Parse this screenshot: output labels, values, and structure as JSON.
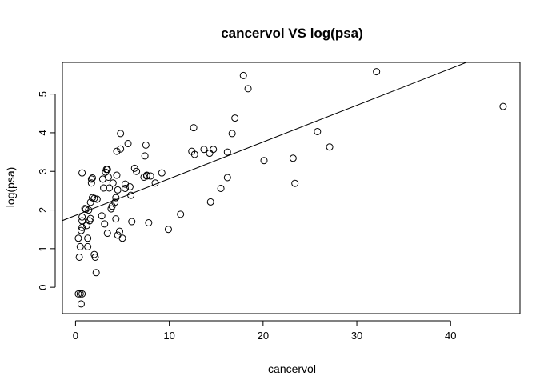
{
  "chart_data": {
    "type": "scatter",
    "title": "cancervol VS log(psa)",
    "xlabel": "cancervol",
    "ylabel": "log(psa)",
    "xlim": [
      -1.4,
      47.4
    ],
    "ylim": [
      -0.68,
      5.82
    ],
    "xticks": [
      0,
      10,
      20,
      30,
      40
    ],
    "yticks": [
      0,
      1,
      2,
      3,
      4,
      5
    ],
    "grid": false,
    "legend": "none",
    "point_color": "#000000",
    "regression_line": {
      "intercept": 1.86,
      "slope": 0.095
    },
    "points": [
      [
        0.3,
        -0.17
      ],
      [
        0.5,
        -0.17
      ],
      [
        0.7,
        -0.17
      ],
      [
        0.6,
        -0.43
      ],
      [
        0.3,
        1.27
      ],
      [
        0.4,
        0.78
      ],
      [
        0.5,
        1.05
      ],
      [
        0.6,
        1.47
      ],
      [
        0.7,
        1.55
      ],
      [
        0.7,
        1.72
      ],
      [
        0.7,
        1.82
      ],
      [
        0.7,
        2.96
      ],
      [
        1.0,
        2.04
      ],
      [
        1.1,
        2.02
      ],
      [
        1.2,
        1.6
      ],
      [
        1.3,
        1.27
      ],
      [
        1.3,
        1.05
      ],
      [
        1.4,
        2.0
      ],
      [
        1.5,
        1.72
      ],
      [
        1.6,
        1.78
      ],
      [
        1.6,
        2.2
      ],
      [
        1.7,
        2.7
      ],
      [
        1.7,
        2.8
      ],
      [
        1.8,
        2.83
      ],
      [
        1.8,
        2.32
      ],
      [
        2.0,
        2.3
      ],
      [
        2.0,
        0.85
      ],
      [
        2.1,
        0.78
      ],
      [
        2.2,
        0.38
      ],
      [
        2.3,
        2.28
      ],
      [
        2.8,
        1.85
      ],
      [
        2.9,
        2.8
      ],
      [
        3.0,
        2.57
      ],
      [
        3.1,
        1.64
      ],
      [
        3.2,
        2.98
      ],
      [
        3.3,
        3.05
      ],
      [
        3.4,
        3.05
      ],
      [
        3.4,
        1.4
      ],
      [
        3.5,
        2.85
      ],
      [
        3.6,
        2.57
      ],
      [
        3.8,
        2.03
      ],
      [
        3.9,
        2.1
      ],
      [
        4.0,
        2.7
      ],
      [
        4.2,
        2.2
      ],
      [
        4.3,
        2.32
      ],
      [
        4.3,
        1.77
      ],
      [
        4.4,
        2.9
      ],
      [
        4.4,
        3.52
      ],
      [
        4.5,
        1.35
      ],
      [
        4.5,
        2.52
      ],
      [
        4.7,
        1.45
      ],
      [
        4.8,
        3.58
      ],
      [
        4.8,
        3.98
      ],
      [
        5.0,
        1.27
      ],
      [
        5.3,
        2.56
      ],
      [
        5.3,
        2.67
      ],
      [
        5.6,
        3.72
      ],
      [
        5.8,
        2.6
      ],
      [
        5.9,
        2.38
      ],
      [
        6.0,
        1.7
      ],
      [
        6.3,
        3.08
      ],
      [
        6.5,
        3.0
      ],
      [
        7.3,
        2.85
      ],
      [
        7.4,
        3.4
      ],
      [
        7.5,
        3.68
      ],
      [
        7.6,
        2.9
      ],
      [
        7.6,
        2.88
      ],
      [
        7.8,
        1.67
      ],
      [
        8.0,
        2.88
      ],
      [
        8.5,
        2.7
      ],
      [
        9.2,
        2.96
      ],
      [
        9.9,
        1.5
      ],
      [
        11.2,
        1.89
      ],
      [
        12.4,
        3.52
      ],
      [
        12.6,
        4.13
      ],
      [
        12.7,
        3.44
      ],
      [
        13.7,
        3.57
      ],
      [
        14.3,
        3.47
      ],
      [
        14.4,
        2.21
      ],
      [
        14.7,
        3.57
      ],
      [
        15.5,
        2.56
      ],
      [
        16.2,
        3.5
      ],
      [
        16.2,
        2.84
      ],
      [
        16.7,
        3.98
      ],
      [
        17.0,
        4.38
      ],
      [
        17.9,
        5.48
      ],
      [
        18.4,
        5.14
      ],
      [
        20.1,
        3.28
      ],
      [
        23.2,
        3.34
      ],
      [
        23.4,
        2.69
      ],
      [
        25.8,
        4.03
      ],
      [
        27.1,
        3.63
      ],
      [
        32.1,
        5.58
      ],
      [
        45.6,
        4.68
      ]
    ]
  }
}
